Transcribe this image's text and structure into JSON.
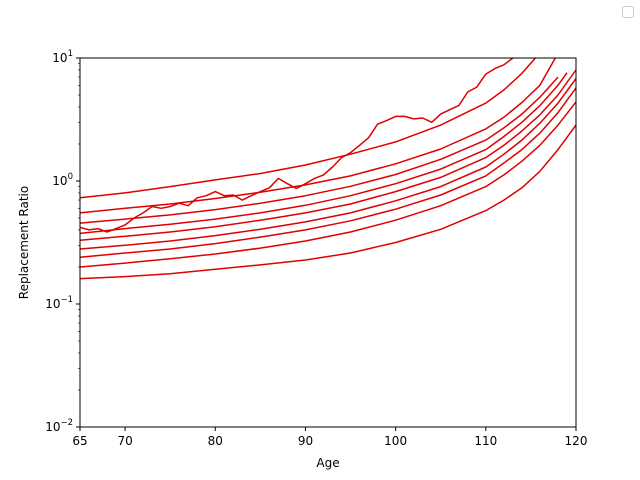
{
  "chart_data": {
    "type": "line",
    "xlabel": "Age",
    "ylabel": "Replacement Ratio",
    "xlim": [
      65,
      120
    ],
    "ylim": [
      0.01,
      10
    ],
    "yscale": "log",
    "grid": false,
    "legend": "top-right",
    "line_color": "#e00000",
    "x_ticks": [
      {
        "value": 65,
        "label": "65"
      },
      {
        "value": 70,
        "label": "70"
      },
      {
        "value": 80,
        "label": "80"
      },
      {
        "value": 90,
        "label": "90"
      },
      {
        "value": 100,
        "label": "100"
      },
      {
        "value": 110,
        "label": "110"
      },
      {
        "value": 120,
        "label": "120"
      }
    ],
    "y_ticks": [
      {
        "value": 0.01,
        "base": "10",
        "exp": "−2"
      },
      {
        "value": 0.1,
        "base": "10",
        "exp": "−1"
      },
      {
        "value": 1,
        "base": "10",
        "exp": "0"
      },
      {
        "value": 10,
        "base": "10",
        "exp": "1"
      }
    ],
    "series": [
      {
        "x": [
          65,
          70,
          75,
          80,
          85,
          90,
          95,
          100,
          105,
          110,
          112,
          114,
          116,
          118,
          120
        ],
        "y": [
          0.161,
          0.167,
          0.176,
          0.192,
          0.208,
          0.228,
          0.26,
          0.316,
          0.405,
          0.575,
          0.7,
          0.88,
          1.2,
          1.8,
          2.85
        ]
      },
      {
        "x": [
          65,
          70,
          75,
          80,
          85,
          90,
          95,
          100,
          105,
          110,
          112,
          114,
          116,
          118,
          120
        ],
        "y": [
          0.2,
          0.215,
          0.233,
          0.255,
          0.285,
          0.325,
          0.385,
          0.48,
          0.63,
          0.9,
          1.12,
          1.45,
          1.95,
          2.85,
          4.4
        ]
      },
      {
        "x": [
          65,
          70,
          75,
          80,
          85,
          90,
          95,
          100,
          105,
          110,
          112,
          114,
          116,
          118,
          120
        ],
        "y": [
          0.24,
          0.26,
          0.28,
          0.31,
          0.35,
          0.4,
          0.475,
          0.59,
          0.77,
          1.1,
          1.4,
          1.8,
          2.45,
          3.6,
          5.7
        ]
      },
      {
        "x": [
          65,
          70,
          75,
          80,
          85,
          90,
          95,
          100,
          105,
          110,
          112,
          114,
          116,
          118,
          120
        ],
        "y": [
          0.28,
          0.3,
          0.325,
          0.36,
          0.405,
          0.465,
          0.55,
          0.69,
          0.9,
          1.3,
          1.65,
          2.15,
          2.95,
          4.3,
          6.8
        ]
      },
      {
        "x": [
          65,
          70,
          75,
          80,
          85,
          90,
          95,
          100,
          105,
          110,
          112,
          114,
          116,
          118,
          120
        ],
        "y": [
          0.33,
          0.355,
          0.385,
          0.425,
          0.48,
          0.55,
          0.65,
          0.82,
          1.07,
          1.55,
          1.95,
          2.55,
          3.45,
          5.0,
          8.0
        ]
      },
      {
        "x": [
          65,
          70,
          75,
          80,
          85,
          90,
          95,
          100,
          105,
          110,
          112,
          114,
          116,
          118,
          119
        ],
        "y": [
          0.375,
          0.41,
          0.445,
          0.49,
          0.55,
          0.635,
          0.76,
          0.95,
          1.25,
          1.8,
          2.3,
          3.0,
          4.1,
          6.0,
          7.6
        ]
      },
      {
        "x": [
          65,
          70,
          75,
          80,
          85,
          90,
          95,
          100,
          105,
          110,
          112,
          114,
          116,
          118
        ],
        "y": [
          0.455,
          0.49,
          0.53,
          0.585,
          0.66,
          0.76,
          0.905,
          1.13,
          1.5,
          2.15,
          2.7,
          3.5,
          4.8,
          7.0
        ]
      },
      {
        "x": [
          65,
          70,
          75,
          80,
          85,
          90,
          95,
          100,
          105,
          110,
          112,
          114,
          116,
          117.7
        ],
        "y": [
          0.55,
          0.6,
          0.65,
          0.72,
          0.81,
          0.93,
          1.1,
          1.38,
          1.82,
          2.65,
          3.3,
          4.35,
          6.0,
          10.0
        ]
      },
      {
        "x": [
          65,
          70,
          75,
          80,
          85,
          90,
          95,
          100,
          105,
          110,
          112,
          114,
          115.5
        ],
        "y": [
          0.73,
          0.8,
          0.9,
          1.02,
          1.15,
          1.35,
          1.65,
          2.08,
          2.85,
          4.3,
          5.5,
          7.5,
          10.0
        ]
      },
      {
        "x": [
          65,
          66,
          67,
          68,
          69,
          70,
          71,
          72,
          73,
          74,
          75,
          76,
          77,
          78,
          79,
          80,
          81,
          82,
          83,
          84,
          85,
          86,
          87,
          88,
          89,
          90,
          91,
          92,
          93,
          94,
          95,
          96,
          97,
          98,
          99,
          100,
          101,
          102,
          103,
          104,
          105,
          106,
          107,
          108,
          109,
          110,
          111,
          112,
          113
        ],
        "y": [
          0.42,
          0.4,
          0.41,
          0.385,
          0.41,
          0.44,
          0.5,
          0.55,
          0.62,
          0.6,
          0.62,
          0.66,
          0.63,
          0.73,
          0.76,
          0.82,
          0.76,
          0.77,
          0.7,
          0.76,
          0.82,
          0.88,
          1.05,
          0.95,
          0.87,
          0.95,
          1.05,
          1.12,
          1.3,
          1.55,
          1.7,
          1.95,
          2.25,
          2.9,
          3.1,
          3.35,
          3.35,
          3.2,
          3.25,
          3.0,
          3.5,
          3.8,
          4.1,
          5.3,
          5.8,
          7.4,
          8.2,
          8.8,
          10.0
        ]
      }
    ]
  }
}
